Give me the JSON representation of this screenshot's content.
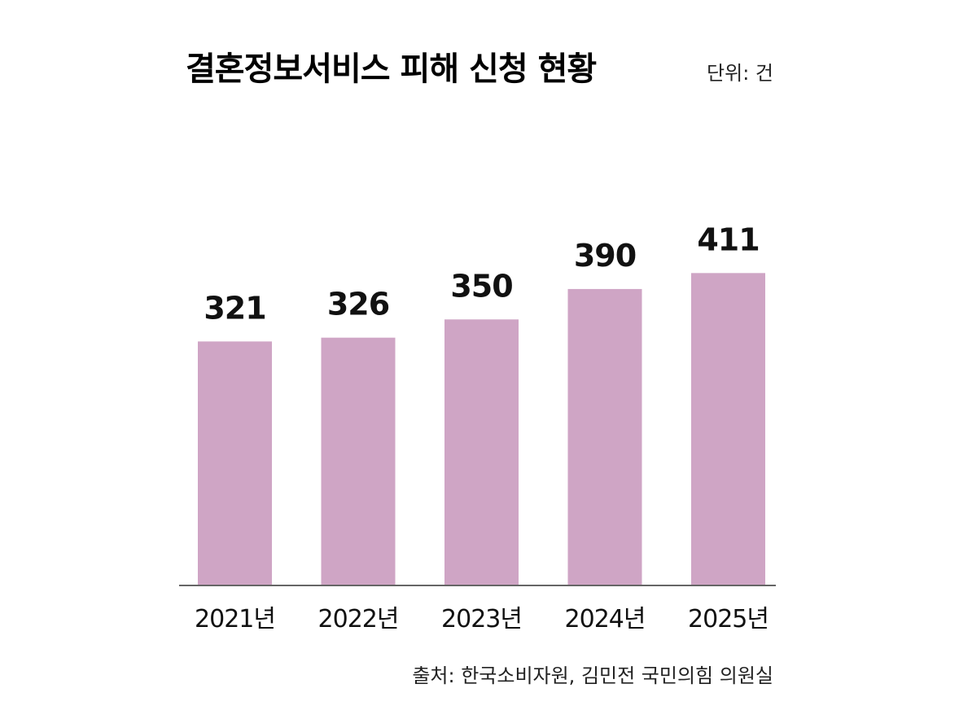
{
  "chart_data": {
    "type": "bar",
    "title": "결혼정보서비스 피해 신청 현황",
    "unit_label": "단위: 건",
    "categories": [
      "2021년",
      "2022년",
      "2023년",
      "2024년",
      "2025년"
    ],
    "values": [
      321,
      326,
      350,
      390,
      411
    ],
    "value_labels": [
      "321",
      "326",
      "350",
      "390",
      "411"
    ],
    "xlabel": "",
    "ylabel": "",
    "grid": false,
    "legend": "none",
    "source": "출처: 한국소비자원, 김민전 국민의힘 의원실"
  },
  "colors": {
    "bar": "#cfa5c5",
    "baseline": "#666666",
    "text": "#111111"
  }
}
